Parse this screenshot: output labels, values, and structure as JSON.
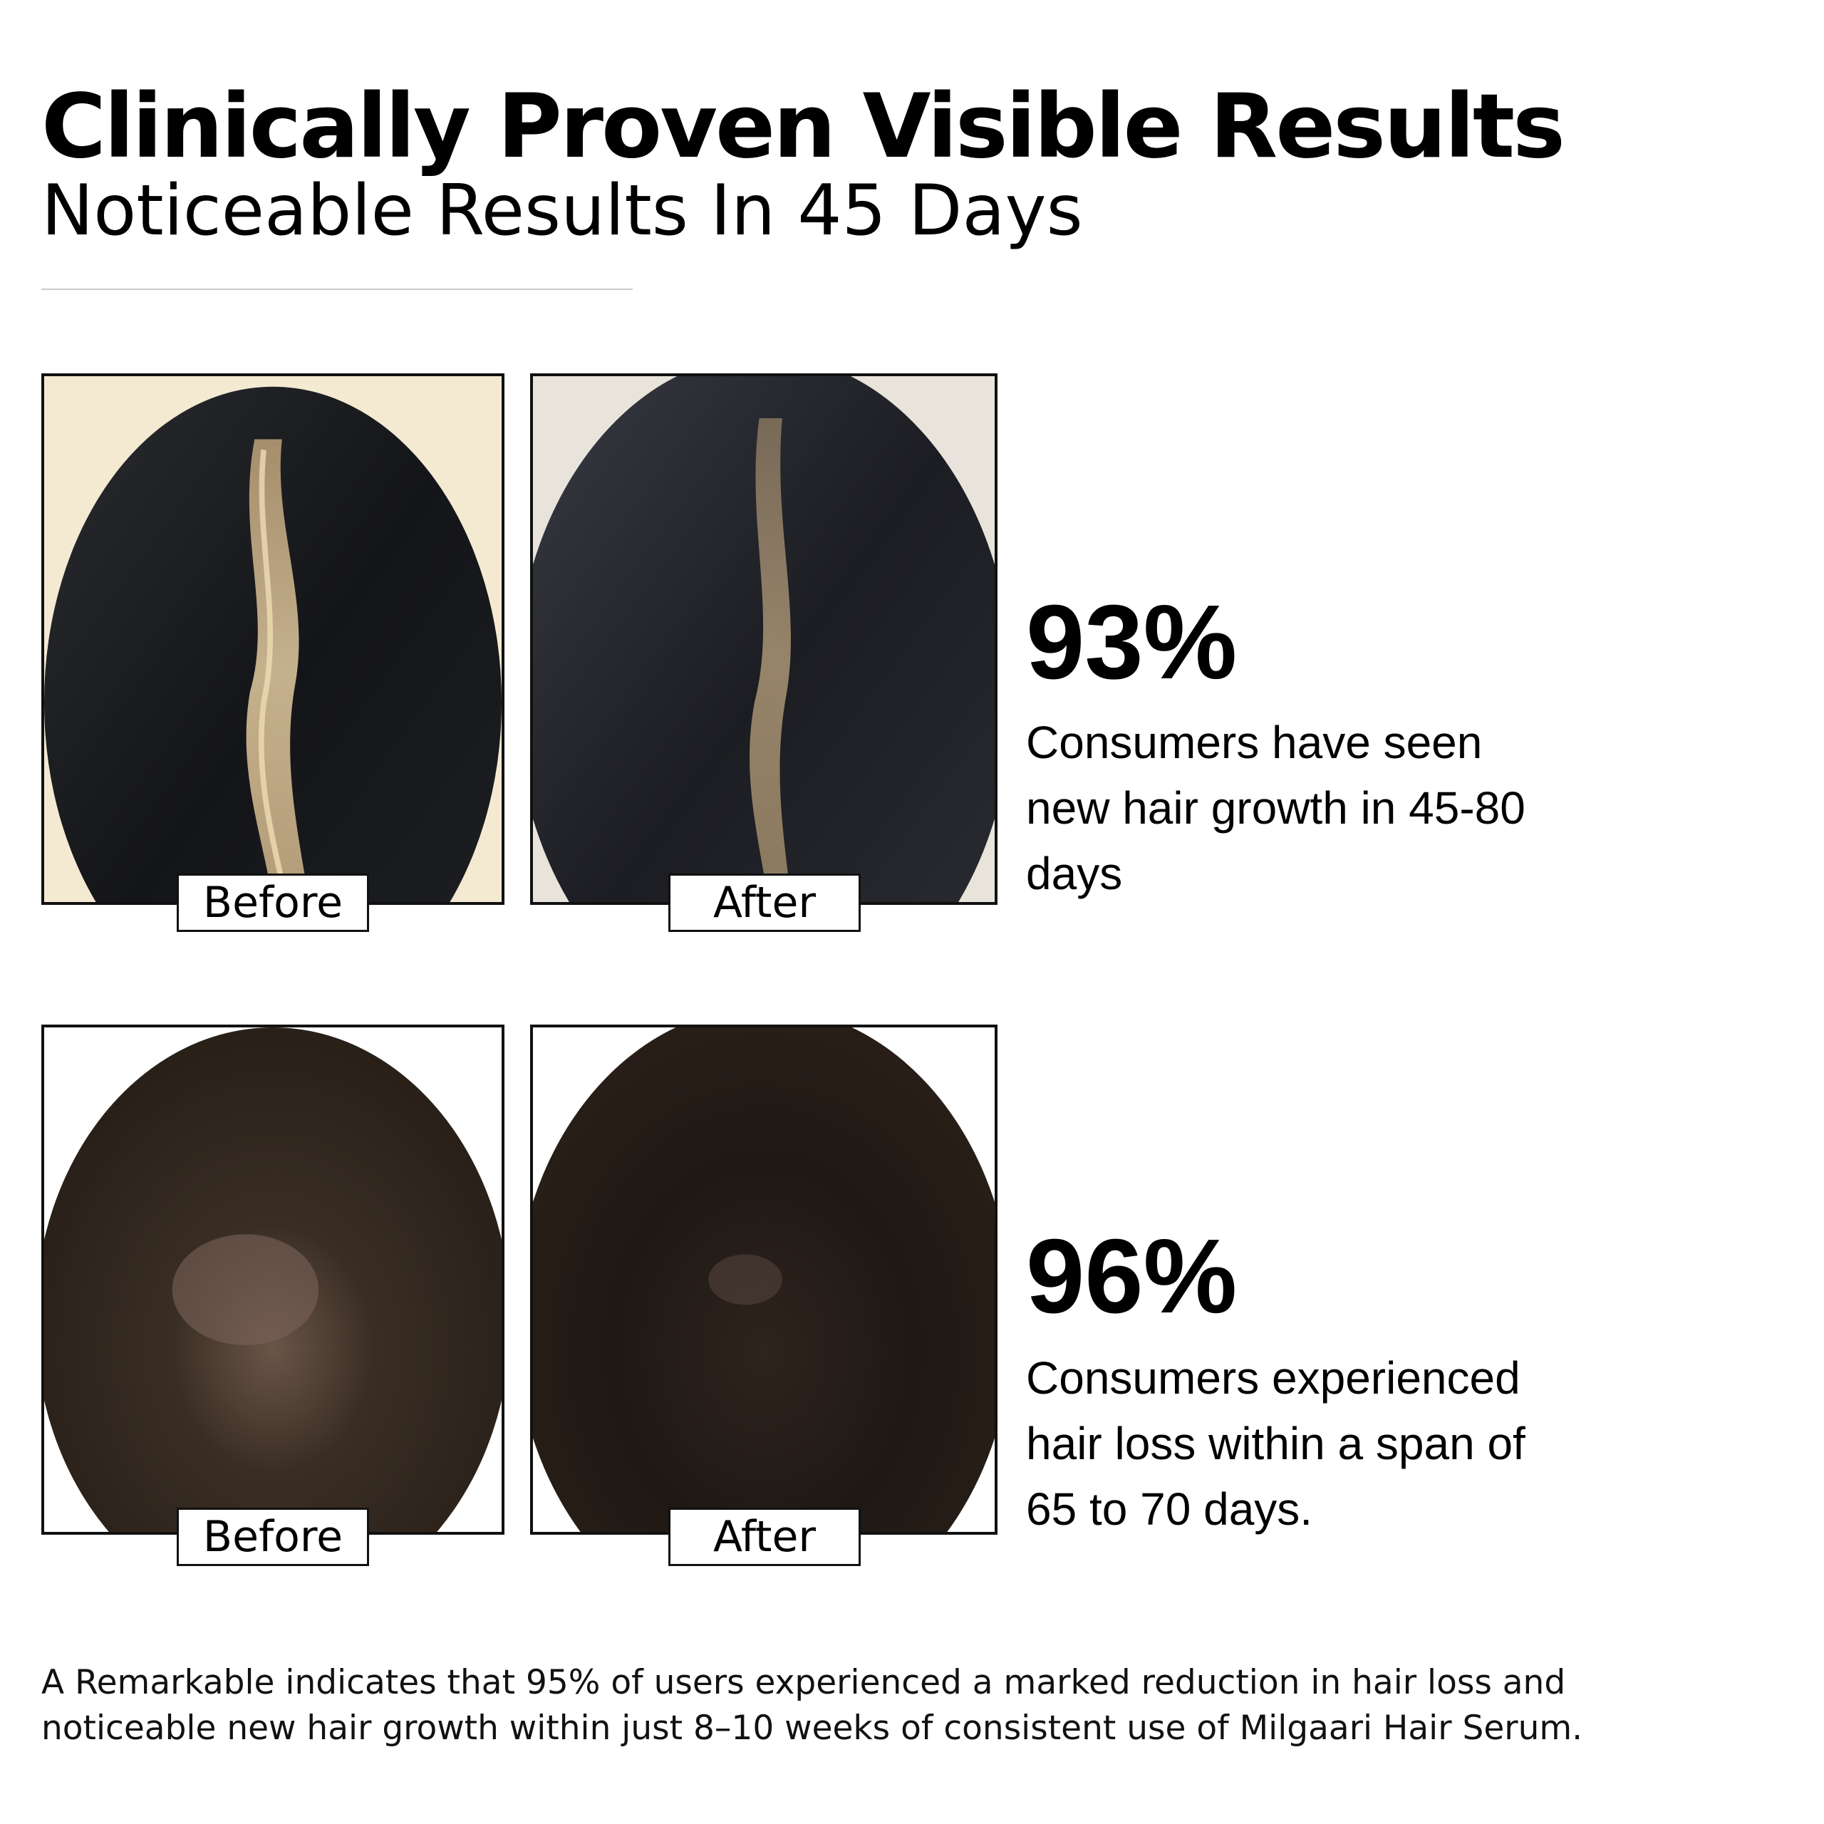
{
  "header": {
    "title": "Clinically Proven Visible Results",
    "subtitle": "Noticeable Results In 45 Days"
  },
  "comparisons": [
    {
      "before_label": "Before",
      "after_label": "After",
      "stat_value": "93%",
      "stat_caption": "Consumers have seen new hair growth in 45-80 days"
    },
    {
      "before_label": "Before",
      "after_label": "After",
      "stat_value": "96%",
      "stat_caption": "Consumers experienced hair loss within a span of 65 to 70 days."
    }
  ],
  "footnote": "A Remarkable indicates that 95% of users experienced a marked reduction in hair loss and noticeable new hair growth within just 8–10 weeks of consistent use of Milgaari Hair Serum."
}
